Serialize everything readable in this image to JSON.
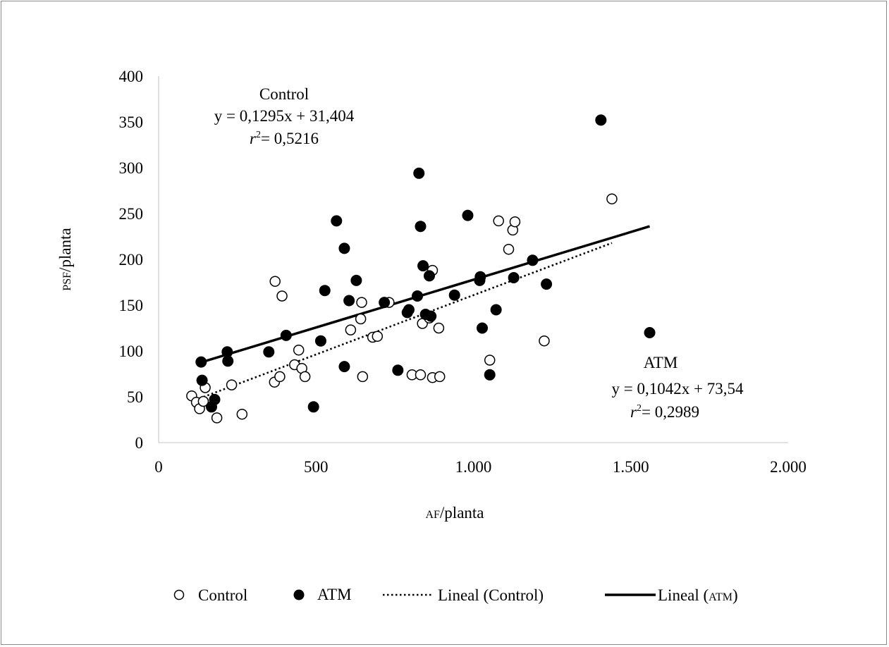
{
  "chart_data": {
    "type": "scatter",
    "xlabel_sc": "AF",
    "xlabel_rest": "/planta",
    "ylabel_sc": "PSF",
    "ylabel_rest": "/planta",
    "xlim": [
      0,
      2000
    ],
    "ylim": [
      0,
      400
    ],
    "x_ticks": [
      0,
      500,
      1000,
      1500,
      2000
    ],
    "x_tick_labels": [
      "0",
      "500",
      "1.000",
      "1.500",
      "2.000"
    ],
    "y_ticks": [
      0,
      50,
      100,
      150,
      200,
      250,
      300,
      350,
      400
    ],
    "y_tick_labels": [
      "0",
      "50",
      "100",
      "150",
      "200",
      "250",
      "300",
      "350",
      "400"
    ],
    "grid": false,
    "legend_position": "bottom",
    "series": [
      {
        "name": "Control",
        "marker": "hollow-circle",
        "points": [
          [
            105,
            51
          ],
          [
            120,
            44
          ],
          [
            130,
            37
          ],
          [
            142,
            45
          ],
          [
            148,
            60
          ],
          [
            185,
            27
          ],
          [
            232,
            63
          ],
          [
            265,
            31
          ],
          [
            370,
            176
          ],
          [
            368,
            66
          ],
          [
            385,
            72
          ],
          [
            392,
            160
          ],
          [
            432,
            85
          ],
          [
            445,
            101
          ],
          [
            455,
            81
          ],
          [
            465,
            72
          ],
          [
            610,
            123
          ],
          [
            642,
            135
          ],
          [
            645,
            153
          ],
          [
            648,
            72
          ],
          [
            680,
            115
          ],
          [
            695,
            116
          ],
          [
            732,
            153
          ],
          [
            805,
            74
          ],
          [
            832,
            74
          ],
          [
            838,
            130
          ],
          [
            860,
            136
          ],
          [
            870,
            188
          ],
          [
            870,
            71
          ],
          [
            890,
            125
          ],
          [
            893,
            72
          ],
          [
            1052,
            90
          ],
          [
            1080,
            242
          ],
          [
            1112,
            211
          ],
          [
            1125,
            232
          ],
          [
            1132,
            241
          ],
          [
            1225,
            111
          ],
          [
            1440,
            266
          ]
        ],
        "color": "#000000"
      },
      {
        "name": "ATM",
        "marker": "filled-circle",
        "points": [
          [
            135,
            88
          ],
          [
            138,
            68
          ],
          [
            168,
            39
          ],
          [
            178,
            47
          ],
          [
            218,
            99
          ],
          [
            220,
            89
          ],
          [
            350,
            99
          ],
          [
            405,
            117
          ],
          [
            492,
            39
          ],
          [
            515,
            111
          ],
          [
            528,
            166
          ],
          [
            565,
            242
          ],
          [
            590,
            83
          ],
          [
            590,
            212
          ],
          [
            605,
            155
          ],
          [
            628,
            177
          ],
          [
            717,
            153
          ],
          [
            760,
            79
          ],
          [
            790,
            142
          ],
          [
            795,
            145
          ],
          [
            822,
            160
          ],
          [
            827,
            294
          ],
          [
            832,
            236
          ],
          [
            840,
            193
          ],
          [
            848,
            140
          ],
          [
            860,
            182
          ],
          [
            865,
            138
          ],
          [
            940,
            161
          ],
          [
            982,
            248
          ],
          [
            1020,
            177
          ],
          [
            1022,
            181
          ],
          [
            1028,
            125
          ],
          [
            1052,
            74
          ],
          [
            1072,
            145
          ],
          [
            1128,
            180
          ],
          [
            1188,
            199
          ],
          [
            1232,
            173
          ],
          [
            1405,
            352
          ],
          [
            1560,
            120
          ]
        ],
        "color": "#000000"
      }
    ],
    "trendlines": [
      {
        "name": "Lineal (Control)",
        "slope": 0.1295,
        "intercept": 31.404,
        "x_range": [
          130,
          1440
        ],
        "style": "dotted"
      },
      {
        "name": "Lineal (ATM)",
        "slope": 0.1042,
        "intercept": 73.54,
        "x_range": [
          135,
          1560
        ],
        "style": "solid"
      }
    ],
    "annotations": {
      "control_title": "Control",
      "control_equation": "y = 0,1295x + 31,404",
      "control_r2_label": "r",
      "control_r2_sup": "2",
      "control_r2_value": "= 0,5216",
      "atm_title": "ATM",
      "atm_equation": "y = 0,1042x + 73,54",
      "atm_r2_label": "r",
      "atm_r2_sup": "2",
      "atm_r2_value": "= 0,2989"
    },
    "legend": [
      {
        "label": "Control",
        "symbol": "hollow-circle"
      },
      {
        "label": "ATM",
        "symbol": "filled-circle"
      },
      {
        "label": "Lineal (Control)",
        "symbol": "dotted-line"
      },
      {
        "label_prefix": "Lineal (",
        "label_sc": "ATM",
        "label_suffix": ")",
        "symbol": "solid-line"
      }
    ]
  }
}
